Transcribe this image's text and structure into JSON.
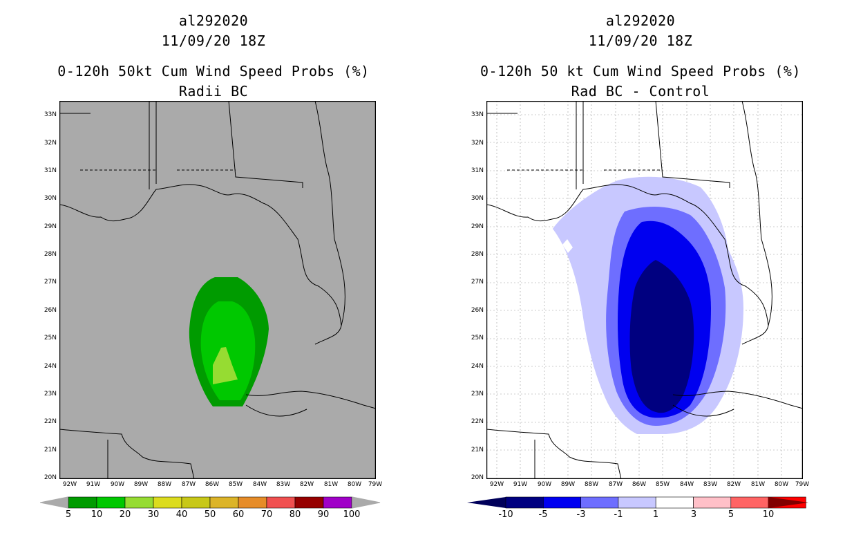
{
  "left": {
    "storm_id": "al292020",
    "datetime": "11/09/20 18Z",
    "title": "0-120h 50kt Cum Wind Speed Probs (%)",
    "subtitle": "Radii BC",
    "colors": {
      "background": "#aaaaaa"
    },
    "colorbar": {
      "labels": [
        "5",
        "10",
        "20",
        "30",
        "40",
        "50",
        "60",
        "70",
        "80",
        "90",
        "100"
      ],
      "colors": [
        "#009b00",
        "#00c800",
        "#96dc32",
        "#dcdc1e",
        "#c8c818",
        "#dcb428",
        "#e68c28",
        "#f05050",
        "#960000",
        "#a000c8"
      ]
    }
  },
  "right": {
    "storm_id": "al292020",
    "datetime": "11/09/20 18Z",
    "title": "0-120h 50 kt Cum Wind Speed Probs (%)",
    "subtitle": "Rad BC - Control",
    "colors": {
      "background": "#ffffff"
    },
    "colorbar": {
      "labels": [
        "-10",
        "-5",
        "-3",
        "-1",
        "1",
        "3",
        "5",
        "10"
      ],
      "colors": [
        "#000080",
        "#0000f0",
        "#6e6eff",
        "#c8c8ff",
        "#ffffff",
        "#ffc0c8",
        "#ff6464",
        "#ff0000"
      ],
      "end_colors": [
        "#00005a",
        "#800000"
      ]
    }
  },
  "axes": {
    "y_labels": [
      "33N",
      "32N",
      "31N",
      "30N",
      "29N",
      "28N",
      "27N",
      "26N",
      "25N",
      "24N",
      "23N",
      "22N",
      "21N",
      "20N"
    ],
    "x_labels": [
      "92W",
      "91W",
      "90W",
      "89W",
      "88W",
      "87W",
      "86W",
      "85W",
      "84W",
      "83W",
      "82W",
      "81W",
      "80W",
      "79W"
    ]
  }
}
